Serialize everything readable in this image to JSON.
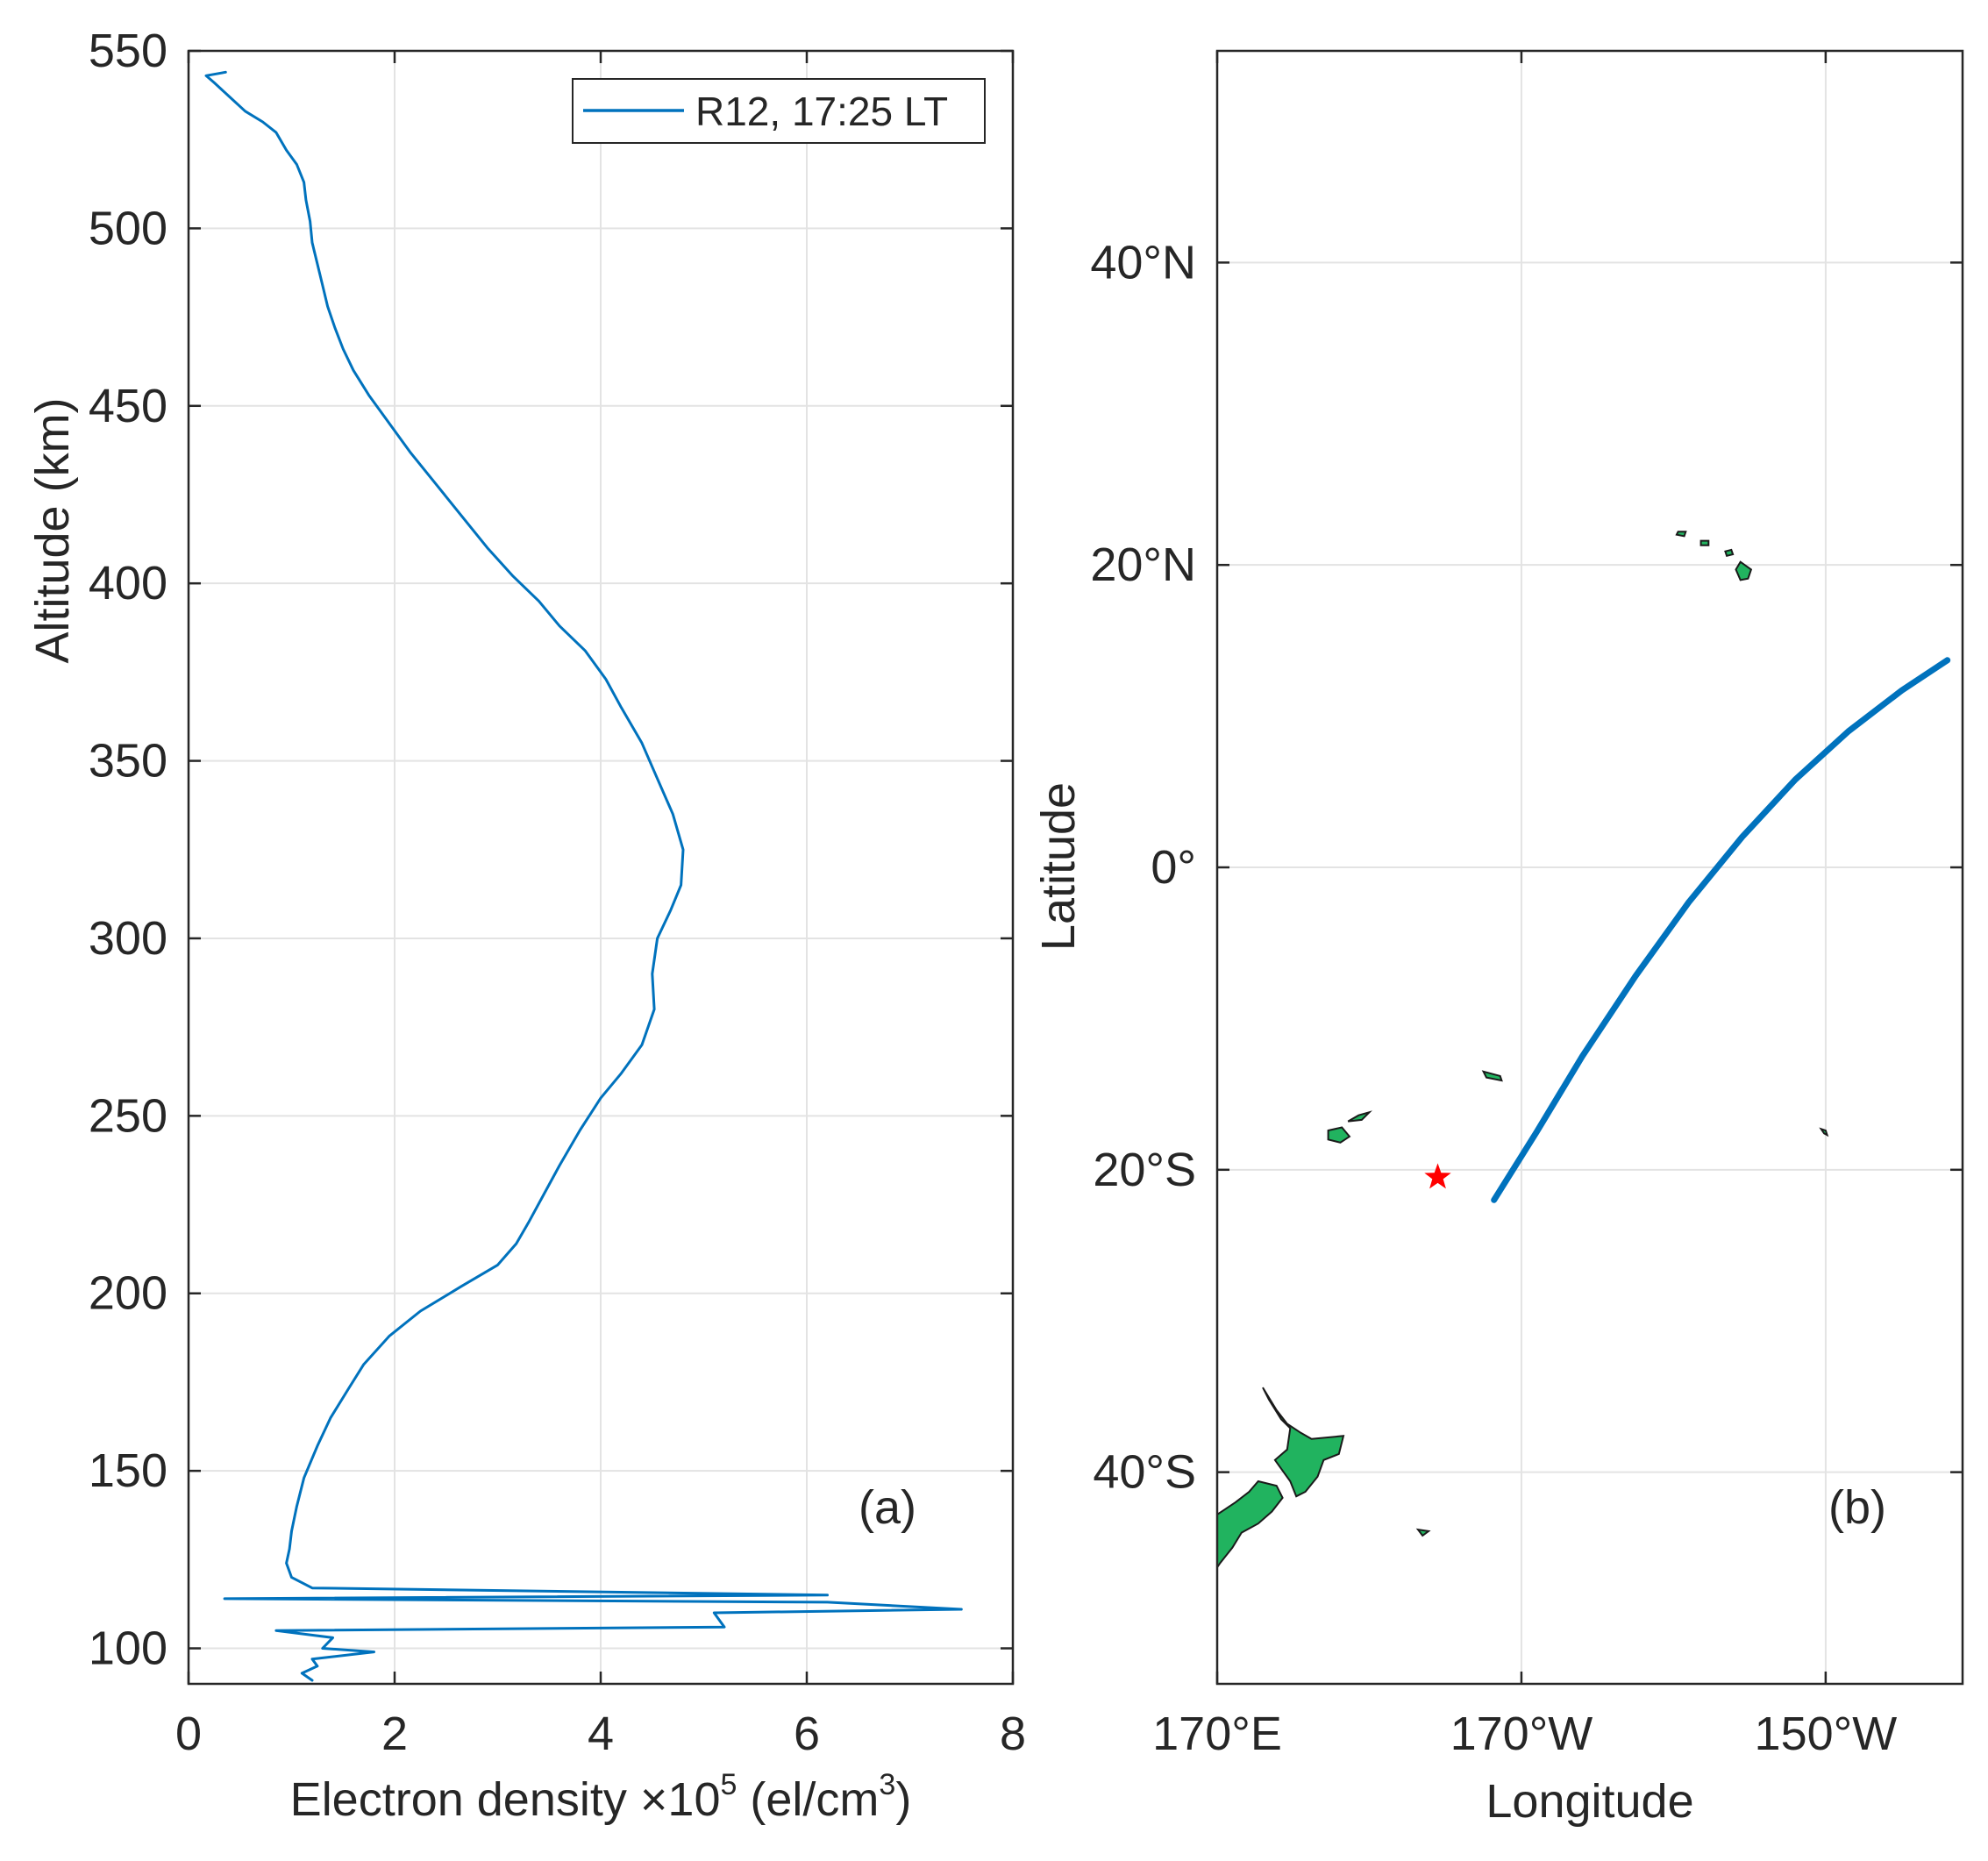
{
  "colors": {
    "profile_line": "#0072BD",
    "track_line": "#0072BD",
    "land": "#21B35F",
    "marker": "#FF0000"
  },
  "chart_data": [
    {
      "type": "line",
      "panel_label": "(a)",
      "xlabel": "Electron density ×10",
      "xlabel_exponent": "5",
      "xlabel_units_pre": " (el/cm",
      "xlabel_units_exponent": "3",
      "xlabel_units_post": ")",
      "ylabel": "Altitude (km)",
      "xlim": [
        0,
        8
      ],
      "ylim": [
        90,
        550
      ],
      "grid": true,
      "xticks": [
        0,
        2,
        4,
        6,
        8
      ],
      "xtick_labels": [
        "0",
        "2",
        "4",
        "6",
        "8"
      ],
      "yticks": [
        100,
        150,
        200,
        250,
        300,
        350,
        400,
        450,
        500,
        550
      ],
      "ytick_labels": [
        "100",
        "150",
        "200",
        "250",
        "300",
        "350",
        "400",
        "450",
        "500",
        "550"
      ],
      "legend": {
        "location": "top-right",
        "entries": [
          "R12, 17:25 LT"
        ]
      },
      "series": [
        {
          "name": "R12, 17:25 LT",
          "points": [
            [
              0.36,
              544
            ],
            [
              0.17,
              543
            ],
            [
              0.25,
              541
            ],
            [
              0.4,
              537
            ],
            [
              0.55,
              533
            ],
            [
              0.72,
              530
            ],
            [
              0.85,
              527
            ],
            [
              0.95,
              522
            ],
            [
              1.05,
              518
            ],
            [
              1.12,
              513
            ],
            [
              1.14,
              508
            ],
            [
              1.18,
              502
            ],
            [
              1.2,
              496
            ],
            [
              1.25,
              490
            ],
            [
              1.3,
              484
            ],
            [
              1.35,
              478
            ],
            [
              1.42,
              472
            ],
            [
              1.5,
              466
            ],
            [
              1.6,
              460
            ],
            [
              1.75,
              453
            ],
            [
              1.95,
              445
            ],
            [
              2.15,
              437
            ],
            [
              2.4,
              428
            ],
            [
              2.65,
              419
            ],
            [
              2.9,
              410
            ],
            [
              3.15,
              402
            ],
            [
              3.4,
              395
            ],
            [
              3.6,
              388
            ],
            [
              3.85,
              381
            ],
            [
              4.05,
              373
            ],
            [
              4.2,
              365
            ],
            [
              4.4,
              355
            ],
            [
              4.55,
              345
            ],
            [
              4.7,
              335
            ],
            [
              4.8,
              325
            ],
            [
              4.78,
              315
            ],
            [
              4.68,
              308
            ],
            [
              4.55,
              300
            ],
            [
              4.5,
              290
            ],
            [
              4.52,
              280
            ],
            [
              4.4,
              270
            ],
            [
              4.2,
              262
            ],
            [
              4.0,
              255
            ],
            [
              3.8,
              246
            ],
            [
              3.6,
              236
            ],
            [
              3.45,
              228
            ],
            [
              3.3,
              220
            ],
            [
              3.18,
              214
            ],
            [
              3.0,
              208
            ],
            [
              2.65,
              202
            ],
            [
              2.25,
              195
            ],
            [
              1.95,
              188
            ],
            [
              1.7,
              180
            ],
            [
              1.55,
              173
            ],
            [
              1.38,
              165
            ],
            [
              1.25,
              157
            ],
            [
              1.12,
              148
            ],
            [
              1.05,
              140
            ],
            [
              1.0,
              133
            ],
            [
              0.98,
              128
            ],
            [
              0.95,
              124
            ],
            [
              1.0,
              120
            ],
            [
              1.2,
              117
            ],
            [
              6.2,
              115
            ],
            [
              0.35,
              114
            ],
            [
              6.2,
              113
            ],
            [
              7.5,
              111
            ],
            [
              5.1,
              110
            ],
            [
              5.2,
              106
            ],
            [
              0.85,
              105
            ],
            [
              1.4,
              103
            ],
            [
              1.3,
              100
            ],
            [
              1.8,
              99
            ],
            [
              1.2,
              97
            ],
            [
              1.25,
              95
            ],
            [
              1.1,
              93
            ],
            [
              1.2,
              91
            ]
          ]
        }
      ]
    },
    {
      "type": "line",
      "panel_label": "(b)",
      "xlabel": "Longitude",
      "ylabel": "Latitude",
      "xlim": [
        170,
        219
      ],
      "ylim": [
        -54,
        54
      ],
      "grid": true,
      "xticks": [
        170,
        190,
        210
      ],
      "xtick_labels": [
        "170°E",
        "170°W",
        "150°W"
      ],
      "yticks": [
        -40,
        -20,
        0,
        20,
        40
      ],
      "ytick_labels": [
        "40°S",
        "20°S",
        "0°",
        "20°N",
        "40°N"
      ],
      "series": [
        {
          "name": "satellite-track",
          "points": [
            [
              188.2,
              -22
            ],
            [
              191.0,
              -17.5
            ],
            [
              194.0,
              -12.5
            ],
            [
              197.5,
              -7.2
            ],
            [
              201.0,
              -2.3
            ],
            [
              204.5,
              2.0
            ],
            [
              208.0,
              5.8
            ],
            [
              211.5,
              9.0
            ],
            [
              215.0,
              11.7
            ],
            [
              218.0,
              13.7
            ]
          ]
        }
      ],
      "markers": [
        {
          "name": "event-location",
          "symbol": "star",
          "lon": 184.5,
          "lat": -20.5
        }
      ],
      "landmasses": [
        {
          "name": "new-zealand-north-island",
          "points": [
            [
              173.0,
              -34.4
            ],
            [
              173.9,
              -35.9
            ],
            [
              174.6,
              -36.8
            ],
            [
              175.5,
              -37.4
            ],
            [
              176.2,
              -37.8
            ],
            [
              178.3,
              -37.6
            ],
            [
              178.0,
              -38.8
            ],
            [
              177.0,
              -39.2
            ],
            [
              176.6,
              -40.3
            ],
            [
              175.8,
              -41.3
            ],
            [
              175.2,
              -41.6
            ],
            [
              174.8,
              -40.6
            ],
            [
              173.8,
              -39.2
            ],
            [
              174.6,
              -38.5
            ],
            [
              174.8,
              -37.1
            ],
            [
              174.2,
              -36.5
            ],
            [
              173.4,
              -35.2
            ]
          ]
        },
        {
          "name": "new-zealand-south-island",
          "points": [
            [
              172.7,
              -40.6
            ],
            [
              173.9,
              -40.9
            ],
            [
              174.3,
              -41.7
            ],
            [
              173.6,
              -42.6
            ],
            [
              172.7,
              -43.4
            ],
            [
              171.6,
              -44.0
            ],
            [
              171.0,
              -45.0
            ],
            [
              170.2,
              -46.0
            ],
            [
              170.0,
              -46.3
            ],
            [
              170.0,
              -42.8
            ],
            [
              171.2,
              -42.0
            ],
            [
              172.1,
              -41.3
            ]
          ]
        },
        {
          "name": "fiji-viti-levu",
          "points": [
            [
              177.3,
              -17.4
            ],
            [
              178.2,
              -17.2
            ],
            [
              178.7,
              -17.8
            ],
            [
              178.1,
              -18.2
            ],
            [
              177.3,
              -18.0
            ]
          ]
        },
        {
          "name": "fiji-vanua-levu",
          "points": [
            [
              178.6,
              -16.8
            ],
            [
              179.3,
              -16.4
            ],
            [
              180.0,
              -16.2
            ],
            [
              179.5,
              -16.7
            ]
          ]
        },
        {
          "name": "samoa",
          "points": [
            [
              187.5,
              -13.5
            ],
            [
              188.6,
              -13.8
            ],
            [
              188.7,
              -14.1
            ],
            [
              187.7,
              -13.9
            ]
          ]
        },
        {
          "name": "hawaii-big-island",
          "points": [
            [
              204.1,
              19.7
            ],
            [
              204.4,
              20.2
            ],
            [
              205.1,
              19.7
            ],
            [
              204.9,
              19.1
            ],
            [
              204.4,
              19.0
            ]
          ]
        },
        {
          "name": "hawaii-maui",
          "points": [
            [
              203.4,
              20.9
            ],
            [
              203.8,
              21.0
            ],
            [
              203.9,
              20.7
            ],
            [
              203.5,
              20.6
            ]
          ]
        },
        {
          "name": "hawaii-oahu",
          "points": [
            [
              201.8,
              21.6
            ],
            [
              202.3,
              21.6
            ],
            [
              202.3,
              21.3
            ],
            [
              201.8,
              21.3
            ]
          ]
        },
        {
          "name": "hawaii-kauai",
          "points": [
            [
              200.3,
              22.2
            ],
            [
              200.8,
              22.2
            ],
            [
              200.7,
              21.9
            ],
            [
              200.2,
              22.0
            ]
          ]
        },
        {
          "name": "tubuai-islet",
          "points": [
            [
              209.7,
              -17.3
            ],
            [
              210.0,
              -17.4
            ],
            [
              210.1,
              -17.7
            ],
            [
              209.9,
              -17.6
            ]
          ]
        },
        {
          "name": "chatham-islet",
          "points": [
            [
              183.2,
              -43.8
            ],
            [
              183.9,
              -43.9
            ],
            [
              183.5,
              -44.2
            ]
          ]
        }
      ]
    }
  ]
}
